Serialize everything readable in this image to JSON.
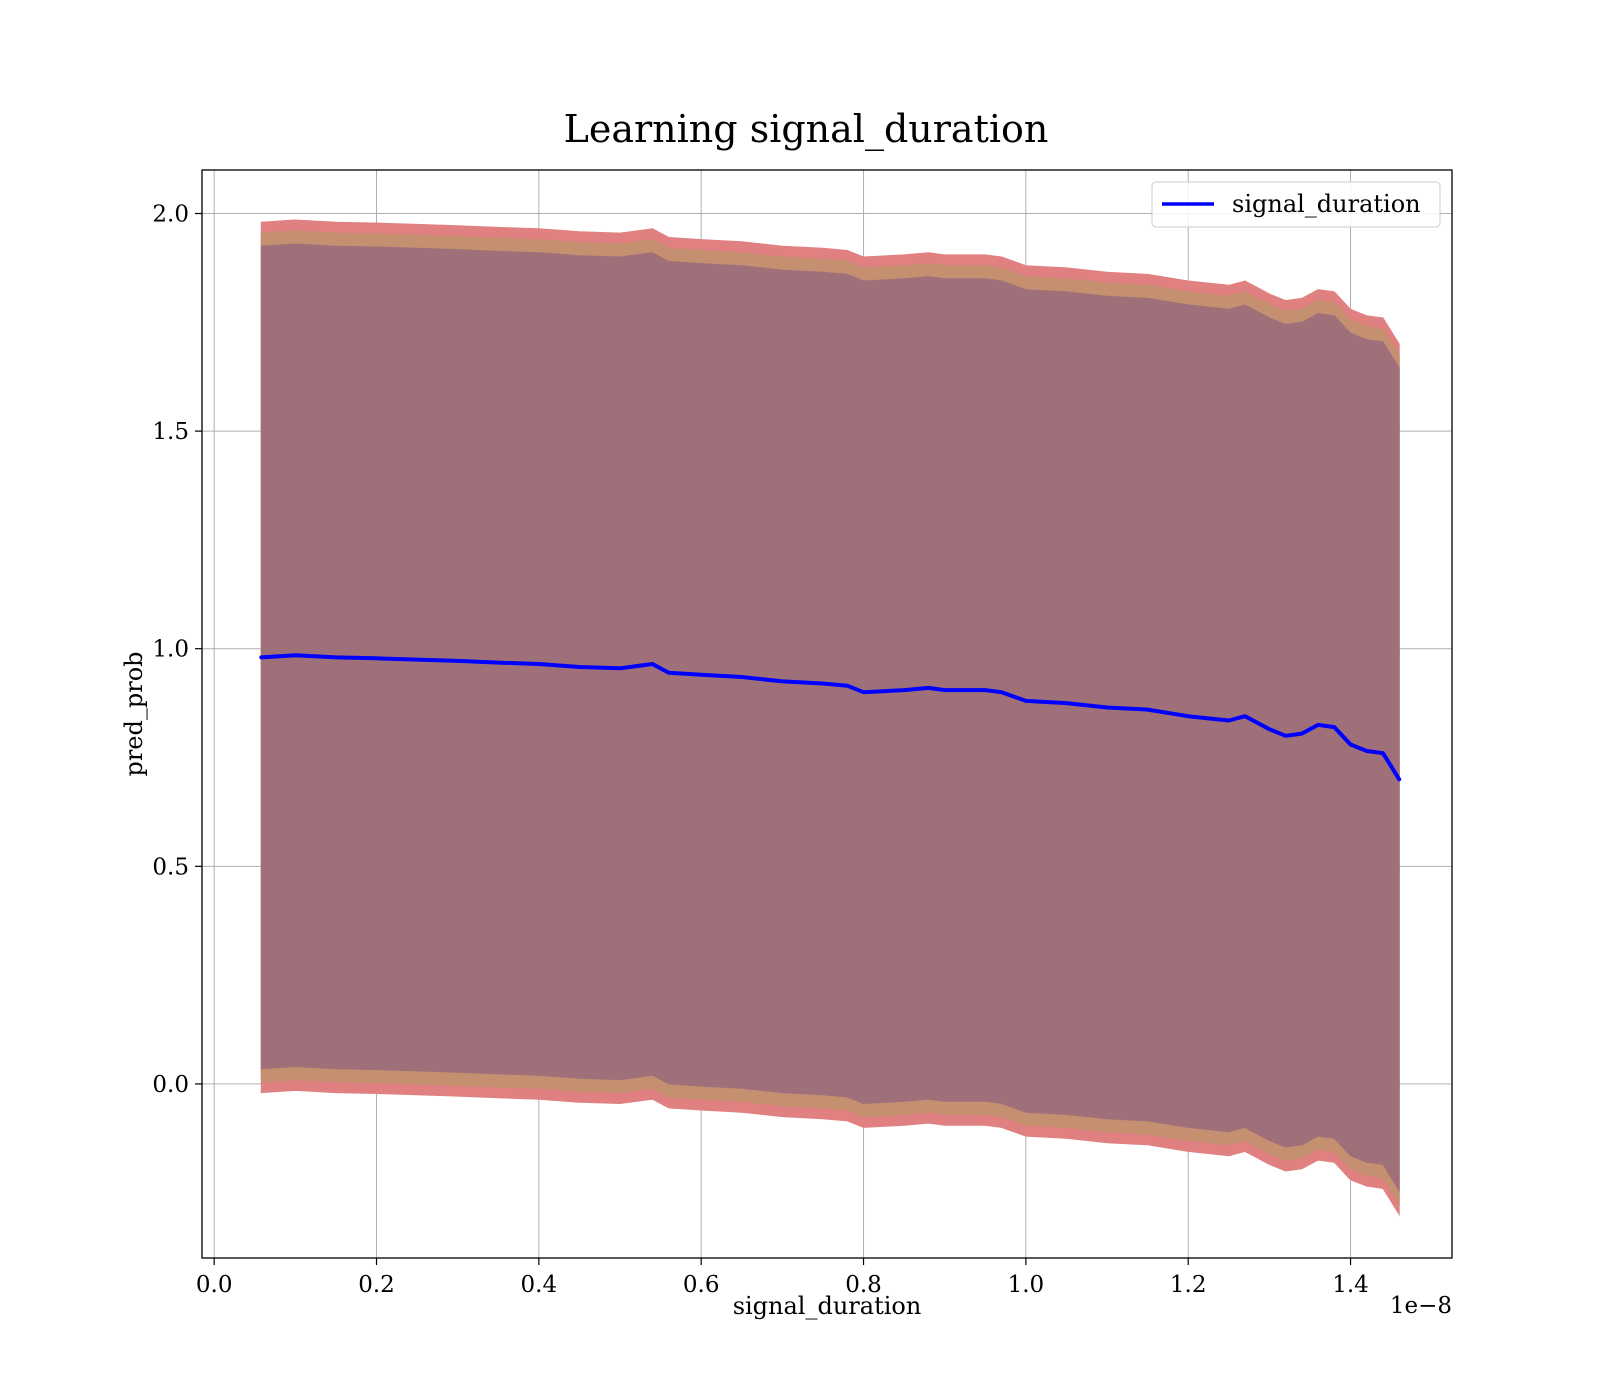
{
  "chart_data": {
    "type": "area",
    "title": "Learning signal_duration",
    "xlabel": "signal_duration",
    "ylabel": "pred_prob",
    "x_offset_label": "1e−8",
    "xlim": [
      -0.015,
      1.525
    ],
    "ylim": [
      -0.4,
      2.1
    ],
    "xticks": [
      0.0,
      0.2,
      0.4,
      0.6,
      0.8,
      1.0,
      1.2,
      1.4
    ],
    "xtick_labels": [
      "0.0",
      "0.2",
      "0.4",
      "0.6",
      "0.8",
      "1.0",
      "1.2",
      "1.4"
    ],
    "yticks": [
      0.0,
      0.5,
      1.0,
      1.5,
      2.0
    ],
    "ytick_labels": [
      "0.0",
      "0.5",
      "1.0",
      "1.5",
      "2.0"
    ],
    "grid": true,
    "legend": {
      "position": "top-right",
      "entries": [
        "signal_duration"
      ]
    },
    "colors": {
      "line": "#0000ff",
      "outer_band": "#e08080",
      "middle_band": "#c49070",
      "inner_band": "#a0707a"
    },
    "series": [
      {
        "name": "signal_duration",
        "x": [
          0.058,
          0.1,
          0.15,
          0.2,
          0.25,
          0.3,
          0.35,
          0.4,
          0.45,
          0.5,
          0.54,
          0.56,
          0.6,
          0.65,
          0.7,
          0.75,
          0.78,
          0.8,
          0.85,
          0.88,
          0.9,
          0.95,
          0.97,
          1.0,
          1.05,
          1.1,
          1.15,
          1.2,
          1.25,
          1.27,
          1.28,
          1.3,
          1.32,
          1.34,
          1.36,
          1.38,
          1.4,
          1.42,
          1.44,
          1.46
        ],
        "y": [
          0.98,
          0.985,
          0.98,
          0.978,
          0.975,
          0.972,
          0.968,
          0.965,
          0.958,
          0.955,
          0.965,
          0.945,
          0.94,
          0.935,
          0.925,
          0.92,
          0.915,
          0.9,
          0.905,
          0.91,
          0.905,
          0.905,
          0.9,
          0.88,
          0.875,
          0.865,
          0.86,
          0.845,
          0.835,
          0.845,
          0.835,
          0.815,
          0.8,
          0.805,
          0.825,
          0.82,
          0.78,
          0.765,
          0.76,
          0.7
        ]
      }
    ],
    "bands": [
      {
        "role": "outer",
        "lower_offset": [
          -1.0,
          -1.0,
          -1.0,
          -1.0,
          -1.0,
          -1.0,
          -1.0,
          -1.0,
          -1.0,
          -1.0,
          -1.0,
          -1.0,
          -1.0,
          -1.0,
          -1.0,
          -1.0,
          -1.0,
          -1.0,
          -1.0,
          -1.0,
          -1.0,
          -1.0,
          -1.0,
          -1.0,
          -1.0,
          -1.0,
          -1.0,
          -1.0,
          -1.0,
          -1.0,
          -1.0,
          -1.0,
          -1.0,
          -1.0,
          -1.0,
          -1.0,
          -1.0,
          -1.0,
          -1.0,
          -1.0
        ],
        "upper_offset": [
          1.0,
          1.0,
          1.0,
          1.0,
          1.0,
          1.0,
          1.0,
          1.0,
          1.0,
          1.0,
          1.0,
          1.0,
          1.0,
          1.0,
          1.0,
          1.0,
          1.0,
          1.0,
          1.0,
          1.0,
          1.0,
          1.0,
          1.0,
          1.0,
          1.0,
          1.0,
          1.0,
          1.0,
          1.0,
          1.0,
          1.0,
          1.0,
          1.0,
          1.0,
          1.0,
          1.0,
          1.0,
          1.0,
          1.0,
          1.0
        ]
      },
      {
        "role": "middle",
        "lower_offset": [
          -0.975,
          -0.975,
          -0.975,
          -0.975,
          -0.975,
          -0.975,
          -0.975,
          -0.975,
          -0.975,
          -0.975,
          -0.975,
          -0.975,
          -0.975,
          -0.975,
          -0.975,
          -0.975,
          -0.975,
          -0.975,
          -0.975,
          -0.975,
          -0.975,
          -0.975,
          -0.975,
          -0.975,
          -0.975,
          -0.975,
          -0.975,
          -0.975,
          -0.975,
          -0.975,
          -0.975,
          -0.975,
          -0.975,
          -0.975,
          -0.975,
          -0.975,
          -0.975,
          -0.975,
          -0.975,
          -0.975
        ],
        "upper_offset": [
          0.975,
          0.975,
          0.975,
          0.975,
          0.975,
          0.975,
          0.975,
          0.975,
          0.975,
          0.975,
          0.975,
          0.975,
          0.975,
          0.975,
          0.975,
          0.975,
          0.975,
          0.975,
          0.975,
          0.975,
          0.975,
          0.975,
          0.975,
          0.975,
          0.975,
          0.975,
          0.975,
          0.975,
          0.975,
          0.975,
          0.975,
          0.975,
          0.975,
          0.975,
          0.975,
          0.975,
          0.975,
          0.975,
          0.975,
          0.975
        ]
      },
      {
        "role": "inner",
        "lower_offset": [
          -0.945,
          -0.945,
          -0.945,
          -0.945,
          -0.945,
          -0.945,
          -0.945,
          -0.945,
          -0.945,
          -0.945,
          -0.945,
          -0.945,
          -0.945,
          -0.945,
          -0.945,
          -0.945,
          -0.945,
          -0.945,
          -0.945,
          -0.945,
          -0.945,
          -0.945,
          -0.945,
          -0.945,
          -0.945,
          -0.945,
          -0.945,
          -0.945,
          -0.945,
          -0.945,
          -0.945,
          -0.945,
          -0.945,
          -0.945,
          -0.945,
          -0.945,
          -0.945,
          -0.945,
          -0.945,
          -0.945
        ],
        "upper_offset": [
          0.945,
          0.945,
          0.945,
          0.945,
          0.945,
          0.945,
          0.945,
          0.945,
          0.945,
          0.945,
          0.945,
          0.945,
          0.945,
          0.945,
          0.945,
          0.945,
          0.945,
          0.945,
          0.945,
          0.945,
          0.945,
          0.945,
          0.945,
          0.945,
          0.945,
          0.945,
          0.945,
          0.945,
          0.945,
          0.945,
          0.945,
          0.945,
          0.945,
          0.945,
          0.945,
          0.945,
          0.945,
          0.945,
          0.945,
          0.945
        ]
      }
    ]
  }
}
